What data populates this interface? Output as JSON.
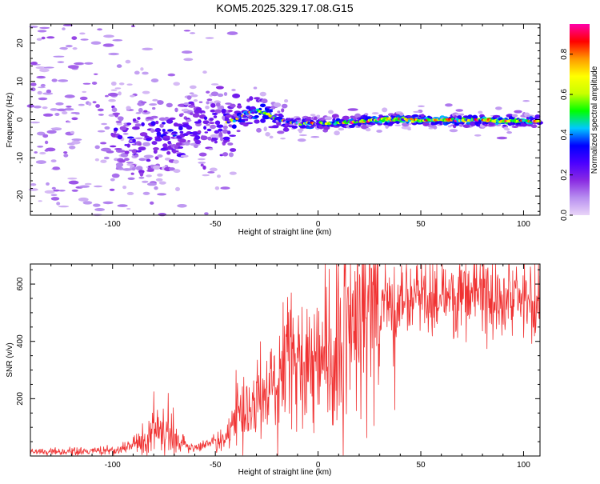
{
  "title": "KOM5.2025.329.17.08.G15",
  "chart_data": [
    {
      "type": "heatmap",
      "title": "KOM5.2025.329.17.08.G15",
      "xlabel": "Height of straight line (km)",
      "ylabel": "Frequency (Hz)",
      "xlim": [
        -140,
        108
      ],
      "ylim": [
        -25,
        25
      ],
      "xticks": [
        -100,
        -50,
        0,
        50,
        100
      ],
      "yticks": [
        -20,
        -10,
        0,
        10,
        20
      ],
      "xtick_labels": [
        "-100",
        "-50",
        "0",
        "50",
        "100"
      ],
      "ytick_labels": [
        "-20",
        "-10",
        "0",
        "10",
        "20"
      ],
      "colorbar": {
        "label": "Normalized spectral amplitude",
        "range": [
          0,
          0.95
        ],
        "ticks": [
          0.0,
          0.2,
          0.4,
          0.6,
          0.8
        ],
        "tick_labels": [
          "0.0",
          "0.2",
          "0.4",
          "0.6",
          "0.8"
        ],
        "colormap": [
          "#e9d5f8",
          "#b88ff0",
          "#8a2be2",
          "#4b00ff",
          "#0000ff",
          "#00c8ff",
          "#00ff00",
          "#c8ff00",
          "#ffff00",
          "#ff9900",
          "#ff0000",
          "#ff00aa"
        ]
      },
      "trace": {
        "x": [
          -95,
          -85,
          -75,
          -65,
          -55,
          -45,
          -40,
          -35,
          -30,
          -25,
          -20,
          -15,
          -10,
          -5,
          0,
          5,
          10,
          20,
          30,
          40,
          50,
          60,
          70,
          80,
          90,
          100,
          108
        ],
        "y": [
          -5,
          -5,
          -4,
          -3,
          -2,
          -1,
          0,
          1.5,
          2.5,
          1.5,
          0,
          -0.5,
          -1,
          -1,
          -1,
          -1,
          -0.8,
          -0.5,
          0,
          0,
          -0.2,
          0,
          -0.3,
          0,
          -0.5,
          -0.3,
          -0.5
        ],
        "amplitude": [
          0.25,
          0.28,
          0.3,
          0.3,
          0.28,
          0.3,
          0.35,
          0.5,
          0.45,
          0.55,
          0.35,
          0.35,
          0.4,
          0.5,
          0.45,
          0.45,
          0.5,
          0.55,
          0.6,
          0.6,
          0.6,
          0.6,
          0.6,
          0.6,
          0.6,
          0.55,
          0.5
        ]
      }
    },
    {
      "type": "line",
      "xlabel": "Height of straight line (km)",
      "ylabel": "SNR (v/v)",
      "xlim": [
        -140,
        108
      ],
      "ylim": [
        0,
        670
      ],
      "xticks": [
        -100,
        -50,
        0,
        50,
        100
      ],
      "yticks": [
        200,
        400,
        600
      ],
      "xtick_labels": [
        "-100",
        "-50",
        "0",
        "50",
        "100"
      ],
      "ytick_labels": [
        "200",
        "400",
        "600"
      ],
      "color": "#f03232",
      "envelope": {
        "x": [
          -140,
          -120,
          -100,
          -90,
          -85,
          -80,
          -75,
          -70,
          -65,
          -60,
          -50,
          -45,
          -40,
          -30,
          -25,
          -20,
          -15,
          -10,
          -5,
          0,
          5,
          10,
          20,
          25,
          30,
          40,
          50,
          60,
          70,
          80,
          90,
          100,
          108
        ],
        "y": [
          15,
          15,
          20,
          35,
          60,
          80,
          75,
          60,
          40,
          25,
          55,
          80,
          120,
          180,
          220,
          270,
          320,
          300,
          340,
          360,
          400,
          420,
          450,
          480,
          520,
          540,
          555,
          560,
          565,
          560,
          555,
          550,
          540
        ]
      },
      "spikes": [
        {
          "x": -80,
          "y": 225
        },
        {
          "x": -73,
          "y": 220
        },
        {
          "x": -40,
          "y": 300
        },
        {
          "x": -28,
          "y": 400
        },
        {
          "x": -13,
          "y": 570
        },
        {
          "x": 9,
          "y": 670
        },
        {
          "x": 37,
          "y": 660
        }
      ]
    }
  ]
}
